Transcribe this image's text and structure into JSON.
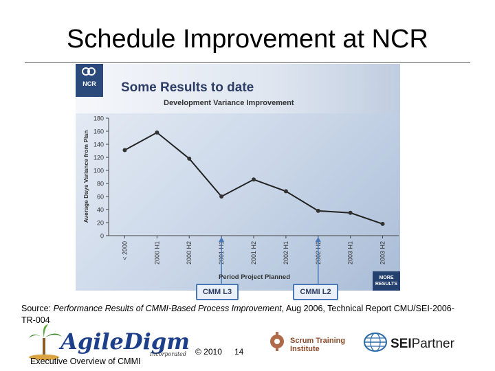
{
  "slide": {
    "title": "Schedule Improvement at NCR",
    "source_prefix": "Source: ",
    "source_title": "Performance Results of CMMI-Based Process Improvement",
    "source_suffix": ", Aug 2006, Technical Report CMU/SEI-2006-TR-004",
    "copyright": "© 2010",
    "page_number": "14",
    "footer_text": "Executive Overview of CMMI"
  },
  "panel": {
    "logo_text": "NCR",
    "heading": "Some Results to date",
    "more_results_line1": "MORE",
    "more_results_line2": "RESULTS"
  },
  "logos": {
    "agile_word": "AgileDigm",
    "agile_incorporated": "Incorporated",
    "scrum_line1": "Scrum Training",
    "scrum_line2": "Institute",
    "sei_bold": "SEI",
    "sei_light": "Partner"
  },
  "chart_data": {
    "type": "line",
    "title": "Development Variance Improvement",
    "xlabel": "Period Project Planned",
    "ylabel": "Average Days Variance from Plan",
    "categories": [
      "< 2000",
      "2000 H1",
      "2000 H2",
      "2001 H1",
      "2001 H2",
      "2002 H1",
      "2002 H2",
      "2003 H1",
      "2003 H2"
    ],
    "series": [
      {
        "values": [
          131,
          158,
          118,
          60,
          86,
          68,
          38,
          35,
          18
        ]
      }
    ],
    "ylim": [
      0,
      180
    ],
    "yticks": [
      0,
      20,
      40,
      60,
      80,
      100,
      120,
      140,
      160,
      180
    ],
    "grid": false,
    "line_color": "#222222",
    "marker_color": "#333333",
    "annotations": [
      {
        "label": "CMM L3",
        "category": "2001 H1"
      },
      {
        "label": "CMMI L2",
        "category": "2002 H2"
      }
    ]
  }
}
